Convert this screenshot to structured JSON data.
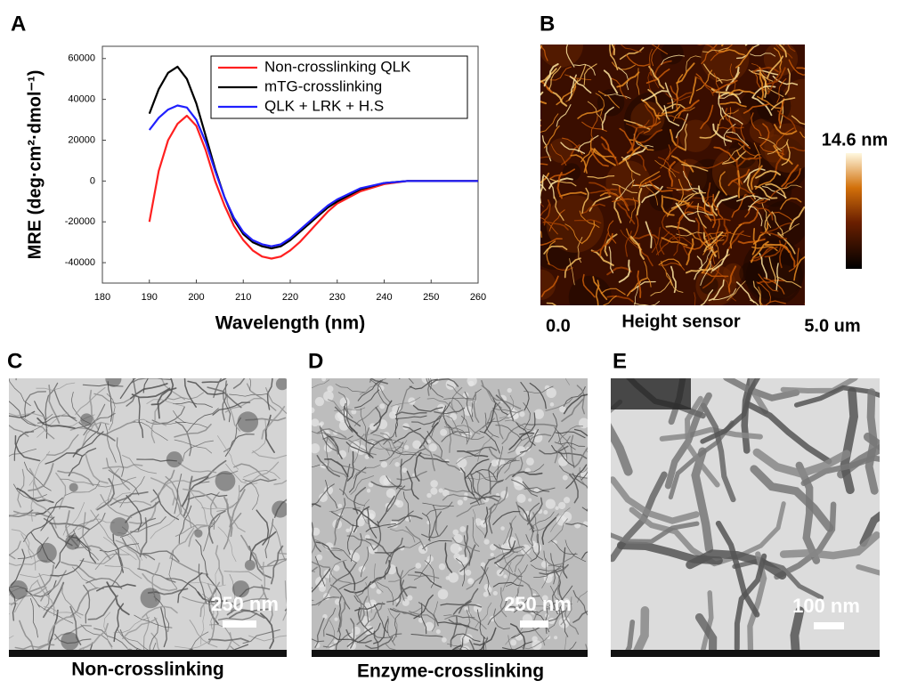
{
  "chart_data": {
    "type": "line",
    "x_label": "Wavelength (nm)",
    "y_label": "MRE (deg·cm²·dmol⁻¹)",
    "x": [
      190,
      192,
      194,
      196,
      198,
      200,
      202,
      204,
      206,
      208,
      210,
      212,
      214,
      216,
      218,
      220,
      222,
      224,
      226,
      228,
      230,
      235,
      240,
      245,
      250,
      255,
      260
    ],
    "series": [
      {
        "name": "Non-crosslinking QLK",
        "color": "#ff2020",
        "values": [
          -20000,
          5000,
          20000,
          28000,
          32000,
          27000,
          15000,
          0,
          -12000,
          -22000,
          -29000,
          -34000,
          -37000,
          -38000,
          -37000,
          -34000,
          -30000,
          -25000,
          -20000,
          -15000,
          -11000,
          -5000,
          -1500,
          0,
          0,
          0,
          0
        ]
      },
      {
        "name": "mTG-crosslinking",
        "color": "#000000",
        "values": [
          33000,
          45000,
          53000,
          56000,
          50000,
          38000,
          22000,
          6000,
          -8000,
          -19000,
          -26000,
          -30000,
          -32000,
          -33000,
          -32000,
          -29000,
          -25000,
          -21000,
          -17000,
          -13000,
          -10000,
          -4000,
          -1000,
          0,
          0,
          0,
          0
        ]
      },
      {
        "name": "QLK + LRK + H.S",
        "color": "#2020ff",
        "values": [
          25000,
          31000,
          35000,
          37000,
          36000,
          30000,
          19000,
          5000,
          -8000,
          -18000,
          -25000,
          -29000,
          -31000,
          -32000,
          -31000,
          -28000,
          -24000,
          -20000,
          -16000,
          -12000,
          -9000,
          -3500,
          -1000,
          0,
          0,
          0,
          0
        ]
      }
    ],
    "xlim": [
      180,
      260
    ],
    "xticks": [
      180,
      190,
      200,
      210,
      220,
      230,
      240,
      250,
      260
    ],
    "ylim": [
      -50000,
      66000
    ],
    "yticks": [
      -40000,
      -20000,
      0,
      20000,
      40000,
      60000
    ],
    "legend": "upper right"
  },
  "panel_labels": [
    "A",
    "B",
    "C",
    "D",
    "E"
  ],
  "afm": {
    "scale_max": "14.6 nm",
    "x_start": "0.0",
    "caption": "Height sensor",
    "x_end": "5.0 um"
  },
  "tem": [
    {
      "scale_bar": "250 nm",
      "caption": "Non-crosslinking"
    },
    {
      "scale_bar": "250 nm",
      "caption": "Enzyme-crosslinking"
    },
    {
      "scale_bar": "100 nm"
    }
  ]
}
